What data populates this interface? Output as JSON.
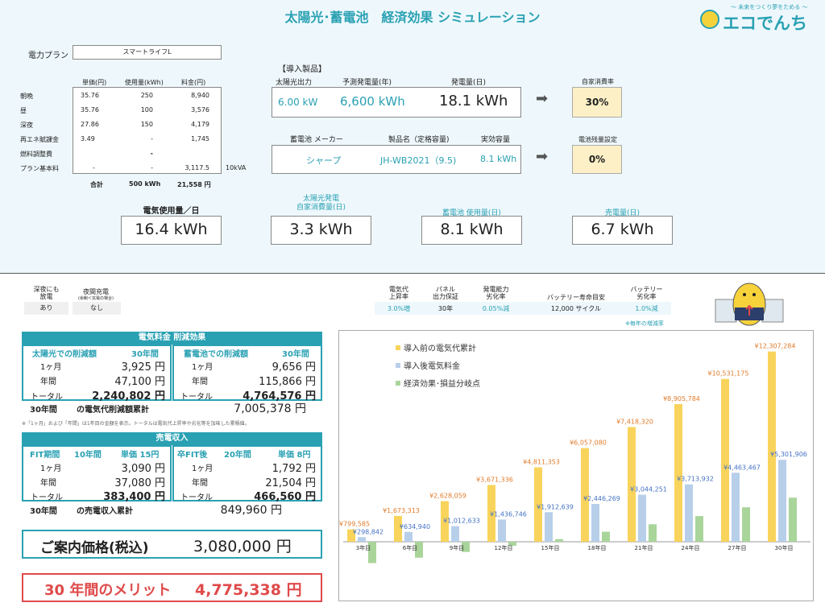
{
  "title": "太陽光･蓄電池　経済効果 シミュレーション",
  "logo": {
    "tagline": "～ 未来をつくり夢をためる ～",
    "name": "エコでんち"
  },
  "plan": {
    "label": "電力プラン",
    "value": "スマートライフL"
  },
  "usage_table": {
    "headers": [
      "単価(円)",
      "使用量(kWh)",
      "料金(円)"
    ],
    "rows": [
      {
        "label": "朝晩",
        "price": "35.76",
        "usage": "250",
        "fee": "8,940"
      },
      {
        "label": "昼",
        "price": "35.76",
        "usage": "100",
        "fee": "3,576"
      },
      {
        "label": "深夜",
        "price": "27.86",
        "usage": "150",
        "fee": "4,179"
      },
      {
        "label": "再エネ賦課金",
        "price": "3.49",
        "usage": "-",
        "fee": "1,745"
      },
      {
        "label": "燃料調整費",
        "price": "",
        "usage": "-",
        "fee": ""
      },
      {
        "label": "プラン基本料",
        "price": "-",
        "usage": "-",
        "fee": "3,117.5"
      }
    ],
    "kva": "10kVA",
    "total_label": "合計",
    "total_usage": "500 kWh",
    "total_fee": "21,558 円"
  },
  "products": {
    "heading": "【導入製品】",
    "solar": {
      "h1": "太陽光出力",
      "h2": "予測発電量(年)",
      "h3": "発電量(日)",
      "v1": "6.00 kW",
      "v2": "6,600 kWh",
      "v3": "18.1 kWh"
    },
    "self_rate": {
      "label": "自家消費率",
      "value": "30%"
    },
    "battery": {
      "h1": "蓄電池 メーカー",
      "h2": "製品名（定格容量)",
      "h3": "実効容量",
      "v1": "シャープ",
      "v2": "JH-WB2021（9.5)",
      "v3": "8.1 kWh"
    },
    "remain": {
      "label": "電池残量設定",
      "value": "0%"
    }
  },
  "summary": [
    {
      "label": "電気使用量／日",
      "value": "16.4 kWh"
    },
    {
      "label": "太陽光発電\n自家消費量(日)",
      "value": "3.3 kWh"
    },
    {
      "label": "蓄電池 使用量(日)",
      "value": "8.1 kWh"
    },
    {
      "label": "売電量(日)",
      "value": "6.7 kWh"
    }
  ],
  "options": {
    "h1": "深夜にも\n放電",
    "h2": "夜間充電",
    "h2sub": "(余剰＜充電の場合)",
    "v1": "あり",
    "v2": "なし"
  },
  "assumptions": {
    "items": [
      {
        "label": "電気代\n上昇率",
        "value": "3.0%増"
      },
      {
        "label": "パネル\n出力保証",
        "value": "30年"
      },
      {
        "label": "発電能力\n劣化率",
        "value": "0.05%減"
      },
      {
        "label": "バッテリー寿命目安",
        "value": "12,000 サイクル"
      },
      {
        "label": "バッテリー\n劣化率",
        "value": "1.0%減"
      }
    ],
    "note": "※毎年の増減率"
  },
  "savings": {
    "header": "電気料金 削減効果",
    "solar": {
      "title": "太陽光での削減額",
      "years": "30年間",
      "rows": [
        {
          "k": "1ヶ月",
          "v": "3,925 円"
        },
        {
          "k": "年間",
          "v": "47,100 円"
        },
        {
          "k": "トータル",
          "v": "2,240,802 円"
        }
      ]
    },
    "battery": {
      "title": "蓄電池での削減額",
      "years": "30年間",
      "rows": [
        {
          "k": "1ヶ月",
          "v": "9,656 円"
        },
        {
          "k": "年間",
          "v": "115,866 円"
        },
        {
          "k": "トータル",
          "v": "4,764,576 円"
        }
      ]
    },
    "cum_label_a": "30年間",
    "cum_label_b": "の電気代削減額累計",
    "cum_value": "7,005,378 円",
    "note": "※「1ヶ月」および「年間」は1年目の金額を表示。トータルは電気代上昇率や劣化等を加味した累積値。"
  },
  "sales": {
    "header": "売電収入",
    "fit": {
      "title": "FIT期間",
      "years": "10年間",
      "unit": "単価 15円",
      "rows": [
        {
          "k": "1ヶ月",
          "v": "3,090 円"
        },
        {
          "k": "年間",
          "v": "37,080 円"
        },
        {
          "k": "トータル",
          "v": "383,400 円"
        }
      ]
    },
    "post": {
      "title": "卒FIT後",
      "years": "20年間",
      "unit": "単価 8円",
      "rows": [
        {
          "k": "1ヶ月",
          "v": "1,792 円"
        },
        {
          "k": "年間",
          "v": "21,504 円"
        },
        {
          "k": "トータル",
          "v": "466,560 円"
        }
      ]
    },
    "cum_label_a": "30年間",
    "cum_label_b": "の売電収入累計",
    "cum_value": "849,960 円"
  },
  "price": {
    "label": "ご案内価格(税込)",
    "value": "3,080,000 円"
  },
  "merit": {
    "label": "30 年間のメリット",
    "value": "4,775,338 円"
  },
  "colors": {
    "accent": "#2aa1b3",
    "before": "#f9d45c",
    "after": "#b8cfea",
    "benefit": "#a9d59b",
    "label_before": "#e07b2a",
    "label_after": "#4472c4",
    "merit": "#e04a4a"
  },
  "chart_data": {
    "type": "bar",
    "categories": [
      "3年目",
      "6年目",
      "9年目",
      "12年目",
      "15年目",
      "18年目",
      "21年目",
      "24年目",
      "27年目",
      "30年目"
    ],
    "series": [
      {
        "name": "導入前の電気代累計",
        "values": [
          799585,
          1673313,
          2628059,
          3671336,
          4811353,
          6057080,
          7418320,
          8905784,
          10531175,
          12307284
        ],
        "labels": [
          "¥799,585",
          "¥1,673,313",
          "¥2,628,059",
          "¥3,671,336",
          "¥4,811,353",
          "¥6,057,080",
          "¥7,418,320",
          "¥8,905,784",
          "¥10,531,175",
          "¥12,307,284"
        ]
      },
      {
        "name": "導入後電気料金",
        "values": [
          298842,
          634940,
          1012633,
          1436746,
          1912639,
          2446269,
          3044251,
          3713932,
          4463467,
          5301906
        ],
        "labels": [
          "¥298,842",
          "¥634,940",
          "¥1,012,633",
          "¥1,436,746",
          "¥1,912,639",
          "¥2,446,269",
          "¥3,044,251",
          "¥3,713,932",
          "¥4,463,467",
          "¥5,301,906"
        ]
      },
      {
        "name": "経済効果･損益分岐点",
        "values": [
          -1380000,
          -1030000,
          -660000,
          -260000,
          170000,
          650000,
          1130000,
          1660000,
          2230000,
          2850000
        ]
      }
    ],
    "ylim": [
      -1500000,
      12600000
    ],
    "legend": "top-left"
  }
}
